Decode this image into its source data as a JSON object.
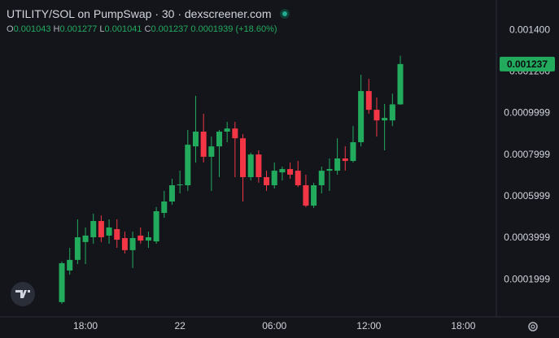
{
  "chart_data": {
    "type": "candlestick",
    "title": "UTILITY/SOL on PumpSwap · 30 · dexscreener.com",
    "ohlc_keys": [
      "O",
      "H",
      "L",
      "C"
    ],
    "change": 0.0001939,
    "change_label": "(+18.60%)",
    "up_color": "#22ab5d",
    "down_color": "#f23645",
    "grid": false,
    "x": [
      16.5,
      17,
      17.5,
      18,
      18.5,
      19,
      19.5,
      20,
      20.5,
      21,
      21.5,
      22,
      22.5,
      23,
      23.5,
      24,
      24.5,
      25,
      25.5,
      26,
      26.5,
      27,
      27.5,
      28,
      28.5,
      29,
      29.5,
      30,
      30.5,
      31,
      31.5,
      32,
      32.5,
      33,
      33.5,
      34,
      34.5,
      35,
      35.5,
      36,
      36.5,
      37,
      37.5,
      38
    ],
    "open": [
      9.2e-05,
      0.000244,
      0.000295,
      0.000381,
      0.000404,
      0.000482,
      0.000412,
      0.000443,
      0.0004,
      0.000342,
      0.000412,
      0.000388,
      0.000384,
      0.000521,
      0.000576,
      0.000654,
      0.000654,
      0.000841,
      0.000912,
      0.000791,
      0.000841,
      0.000912,
      0.000927,
      0.00088,
      0.000693,
      0.000802,
      0.000693,
      0.000654,
      0.000716,
      0.000732,
      0.000724,
      0.000654,
      0.000556,
      0.000654,
      0.000724,
      0.000724,
      0.000783,
      0.000771,
      0.000861,
      0.001107,
      0.001017,
      0.000966,
      0.000966,
      0.001043
    ],
    "high": [
      0.000287,
      0.000353,
      0.00049,
      0.000451,
      0.000517,
      0.000509,
      0.00049,
      0.00049,
      0.000431,
      0.000431,
      0.000451,
      0.000431,
      0.000549,
      0.000627,
      0.000685,
      0.000724,
      0.00092,
      0.001084,
      0.000998,
      0.000888,
      0.00092,
      0.000959,
      0.000959,
      0.0009,
      0.00081,
      0.000822,
      0.000724,
      0.000763,
      0.000744,
      0.000763,
      0.000771,
      0.000705,
      0.000666,
      0.000744,
      0.000783,
      0.00088,
      0.000841,
      0.000939,
      0.001185,
      0.001166,
      0.001076,
      0.001045,
      0.001095,
      0.001277
    ],
    "low": [
      8.4e-05,
      0.000224,
      0.000275,
      0.000275,
      0.000373,
      0.000381,
      0.000373,
      0.000353,
      0.000326,
      0.000256,
      0.000373,
      0.000353,
      0.000373,
      0.000498,
      0.00056,
      0.000615,
      0.000627,
      0.000763,
      0.000763,
      0.000627,
      0.000693,
      0.000861,
      0.000693,
      0.000576,
      0.000677,
      0.000666,
      0.000627,
      0.000638,
      0.000677,
      0.000685,
      0.000646,
      0.000549,
      0.000545,
      0.000615,
      0.000627,
      0.000705,
      0.000724,
      0.000763,
      0.000841,
      0.000998,
      0.000888,
      0.000822,
      0.000939,
      0.001041
    ],
    "close": [
      0.000279,
      0.000295,
      0.000404,
      0.000412,
      0.000482,
      0.000404,
      0.000451,
      0.000392,
      0.000342,
      0.0004,
      0.000388,
      0.000404,
      0.000529,
      0.000576,
      0.000654,
      0.000658,
      0.000849,
      0.000912,
      0.000791,
      0.000841,
      0.000912,
      0.000927,
      0.00088,
      0.000693,
      0.000802,
      0.000693,
      0.000654,
      0.000724,
      0.000732,
      0.000705,
      0.000654,
      0.000556,
      0.000654,
      0.000724,
      0.000732,
      0.000783,
      0.000771,
      0.000861,
      0.001107,
      0.001017,
      0.000966,
      0.000978,
      0.001043,
      0.001237
    ],
    "xlim": [
      12.57,
      44.1
    ],
    "xticks": [
      {
        "value": 18,
        "label": "18:00"
      },
      {
        "value": 24,
        "label": "22"
      },
      {
        "value": 30,
        "label": "06:00"
      },
      {
        "value": 36,
        "label": "12:00"
      },
      {
        "value": 42,
        "label": "18:00"
      }
    ],
    "ylim": [
      2.1e-05,
      0.001545
    ],
    "yticks": [
      {
        "value": 0.0014,
        "label": "0.001400"
      },
      {
        "value": 0.0012,
        "label": "0.001200"
      },
      0.0009999,
      0.0007999,
      0.0005999,
      0.0003999,
      0.0001999
    ]
  }
}
